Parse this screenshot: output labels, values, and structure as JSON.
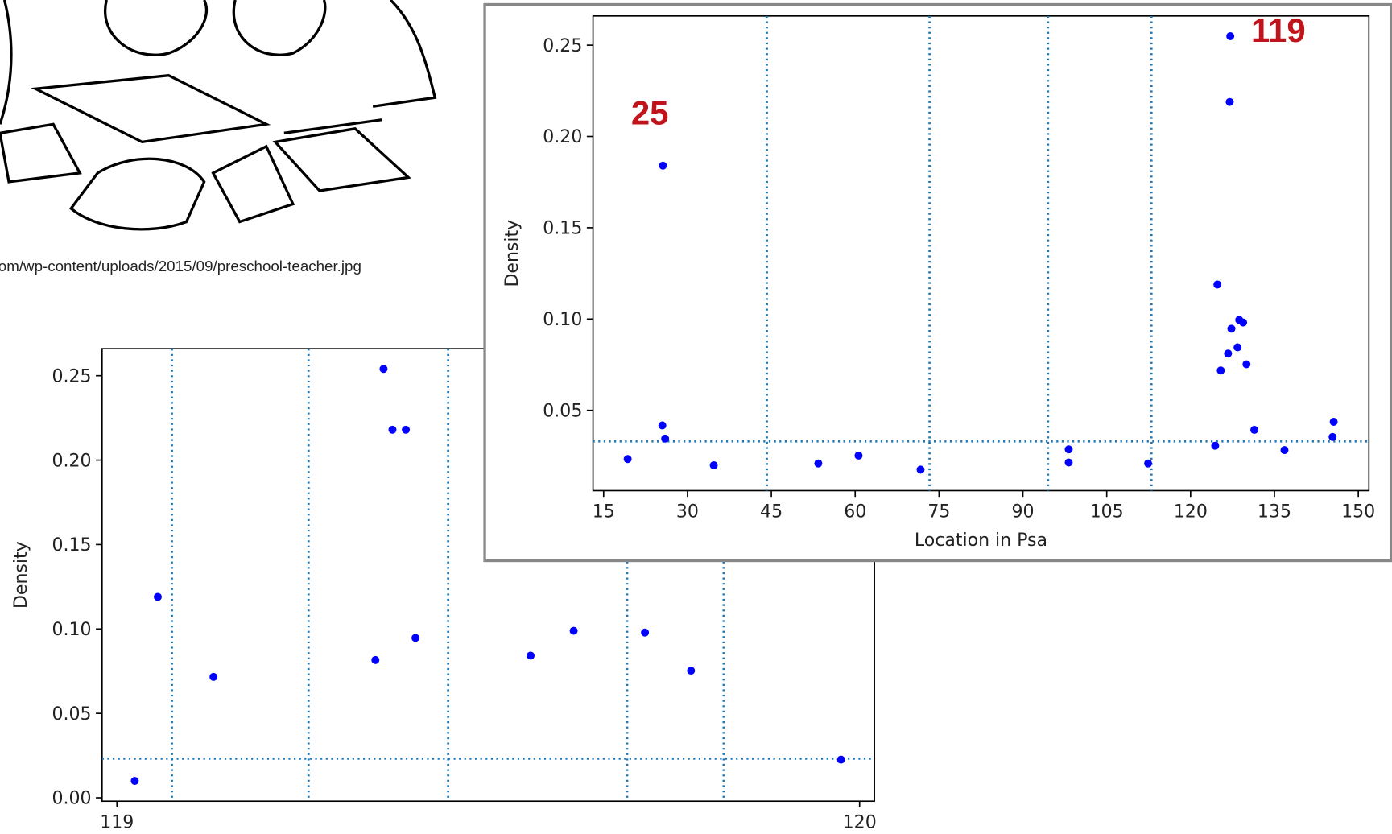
{
  "caption": "om/wp-content/uploads/2015/09/preschool-teacher.jpg",
  "chart_data": [
    {
      "type": "scatter",
      "x_label": "Location in Psa",
      "y_label": "Density",
      "color": "#0000ff",
      "line_color": "#1f77b4",
      "annotations": [
        "25",
        "119"
      ],
      "x": [
        19.3,
        25.6,
        25.5,
        26.0,
        34.7,
        53.4,
        60.6,
        71.7,
        98.2,
        98.2,
        112.4,
        127.1,
        127.0,
        124.8,
        127.3,
        128.7,
        129.4,
        126.7,
        128.4,
        125.4,
        130.0,
        131.4,
        124.4,
        136.8,
        145.6,
        145.4
      ],
      "values": [
        0.0233,
        0.184,
        0.0417,
        0.0345,
        0.0199,
        0.0209,
        0.0252,
        0.0175,
        0.0286,
        0.0214,
        0.0209,
        0.2549,
        0.2189,
        0.1189,
        0.0947,
        0.0995,
        0.0981,
        0.0811,
        0.0845,
        0.0718,
        0.0752,
        0.0393,
        0.0306,
        0.0282,
        0.0437,
        0.0354
      ],
      "vlines": [
        44.2,
        73.3,
        94.5,
        113.0
      ],
      "hline": 0.033,
      "xlim": [
        13.1,
        151.9
      ],
      "xticks": [
        15,
        30,
        45,
        60,
        75,
        90,
        105,
        120,
        135,
        150
      ],
      "ylim": [
        0.006,
        0.266
      ],
      "yticks": [
        0.05,
        {
          "value": 0.1,
          "label": "0.10"
        },
        0.15,
        {
          "value": 0.2,
          "label": "0.20"
        },
        0.25
      ]
    },
    {
      "type": "scatter",
      "y_label": "Density",
      "color": "#0000ff",
      "line_color": "#1f77b4",
      "x": [
        119.024,
        119.055,
        119.13,
        119.348,
        119.359,
        119.371,
        119.389,
        119.402,
        119.557,
        119.615,
        119.711,
        119.773,
        119.975
      ],
      "values": [
        0.01,
        0.119,
        0.0716,
        0.0816,
        0.254,
        0.218,
        0.218,
        0.0947,
        0.0842,
        0.0989,
        0.0979,
        0.0753,
        0.0226
      ],
      "vlines": [
        119.074,
        119.258,
        119.446,
        119.687,
        119.817
      ],
      "hline": 0.0232,
      "xlim": [
        118.98,
        120.02
      ],
      "xticks": [
        119,
        120
      ],
      "ylim": [
        -0.002,
        0.266
      ],
      "yticks": [
        {
          "value": 0,
          "label": "0.00"
        },
        0.05,
        {
          "value": 0.1,
          "label": "0.10"
        },
        0.15,
        {
          "value": 0.2,
          "label": "0.20"
        },
        0.25
      ]
    }
  ]
}
